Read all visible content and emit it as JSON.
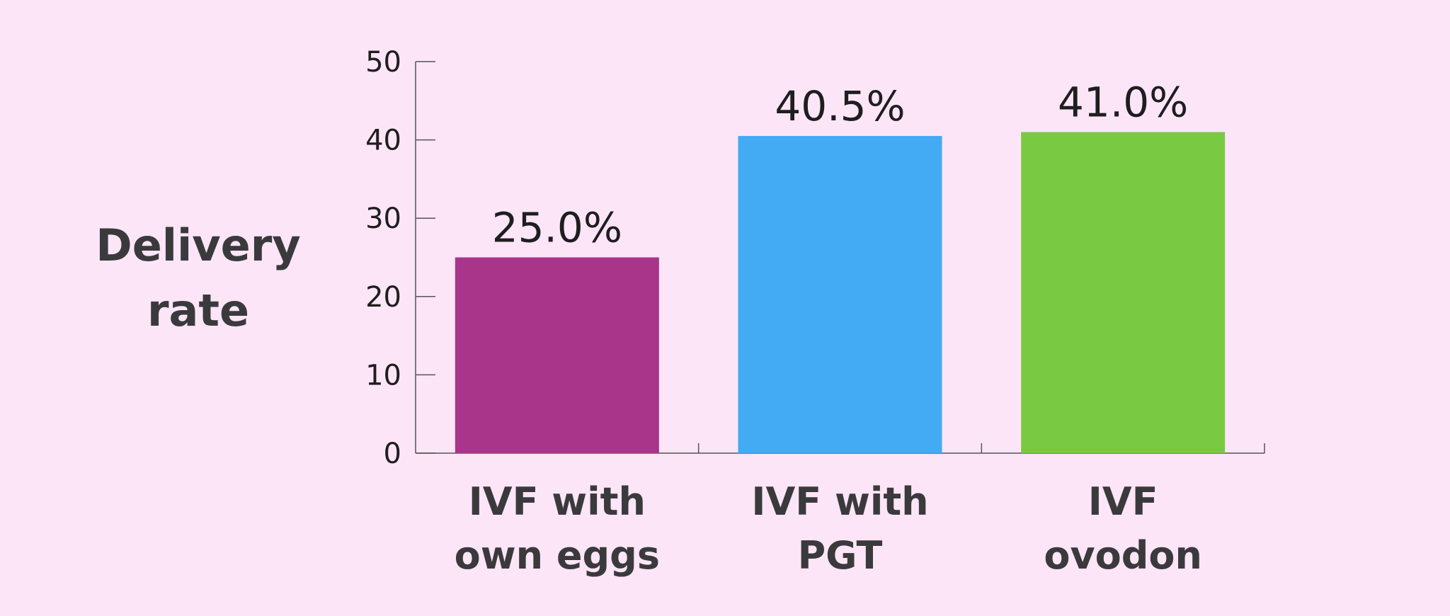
{
  "chart_data": {
    "type": "bar",
    "ylabel": [
      "Delivery",
      "rate"
    ],
    "xlabel": "",
    "ylim": [
      0,
      50
    ],
    "yticks": [
      0,
      10,
      20,
      30,
      40,
      50
    ],
    "categories": [
      [
        "IVF with",
        "own eggs"
      ],
      [
        "IVF with",
        "PGT"
      ],
      [
        "IVF",
        "ovodon"
      ]
    ],
    "values": [
      25.0,
      40.5,
      41.0
    ],
    "data_labels": [
      "25.0%",
      "40.5%",
      "41.0%"
    ],
    "colors": [
      "#a8358a",
      "#43aaf4",
      "#79c942"
    ],
    "background": "#fde5f8",
    "grid": false,
    "legend": "none"
  }
}
